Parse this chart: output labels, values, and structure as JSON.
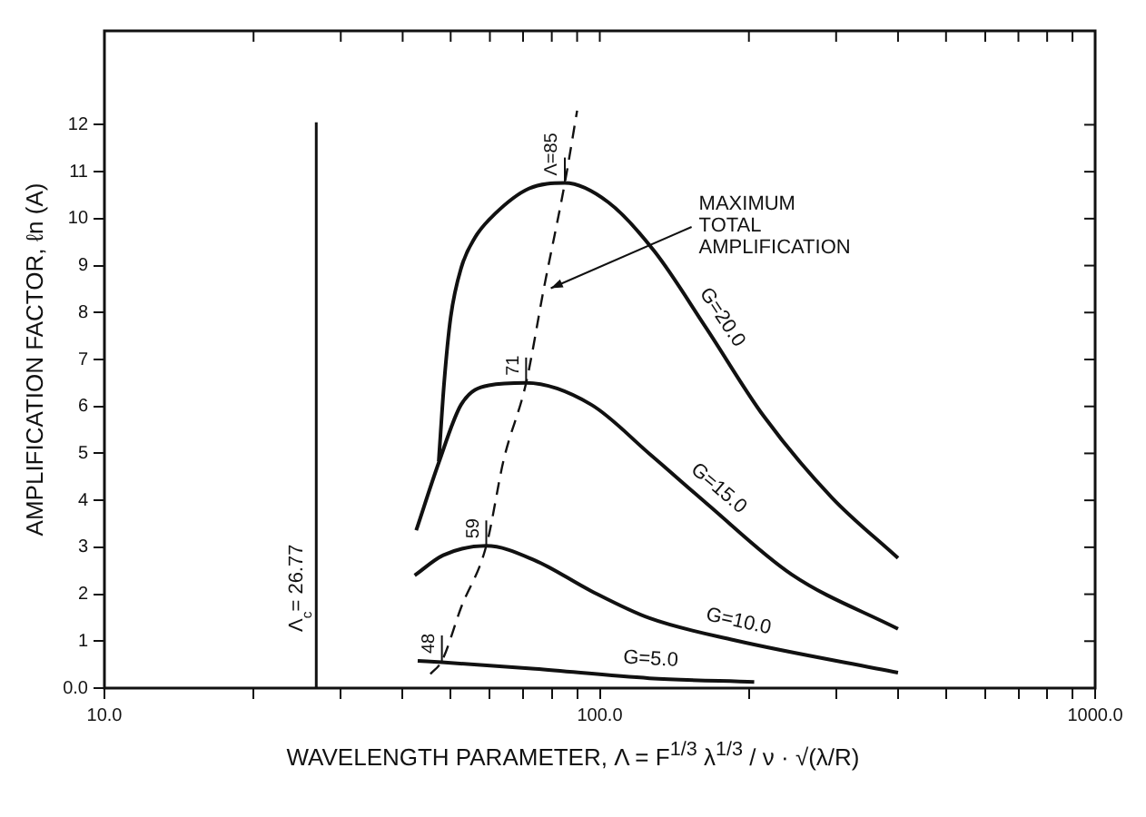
{
  "chart_data": {
    "type": "line",
    "xlabel": "WAVELENGTH PARAMETER, Λ = F$^{1/3}$ λ$^{1/3}$ / ν · √(λ/R)",
    "ylabel": "AMPLIFICATION FACTOR, ℓn (A)",
    "series": [
      {
        "name": "G=20.0",
        "color": "#111111",
        "x": [
          47.3,
          48.5,
          50,
          52.5,
          56,
          61.4,
          71.9,
          85,
          104,
          129,
          164,
          214,
          294,
          400
        ],
        "values": [
          4.83,
          6.5,
          7.9,
          8.95,
          9.6,
          10.1,
          10.64,
          10.76,
          10.35,
          9.3,
          7.67,
          5.8,
          4.06,
          2.77
        ]
      },
      {
        "name": "G=15.0",
        "color": "#111111",
        "x": [
          42.6,
          47.3,
          52.5,
          59.7,
          71,
          96,
          126,
          164,
          244,
          400
        ],
        "values": [
          3.36,
          4.8,
          6.04,
          6.45,
          6.5,
          6.04,
          4.99,
          3.94,
          2.42,
          1.26
        ]
      },
      {
        "name": "G=10.0",
        "color": "#111111",
        "x": [
          42.3,
          48.3,
          59,
          74,
          96,
          126,
          187,
          400
        ],
        "values": [
          2.4,
          2.83,
          3.03,
          2.72,
          2.07,
          1.49,
          1.02,
          0.33
        ]
      },
      {
        "name": "G=5.0",
        "color": "#111111",
        "x": [
          42.9,
          48,
          74,
          126,
          205
        ],
        "values": [
          0.58,
          0.55,
          0.41,
          0.21,
          0.13
        ]
      },
      {
        "color": "#111111",
        "line_style": "dashed",
        "x": [
          45.5,
          48,
          52.5,
          59,
          64,
          71,
          77,
          85,
          90
        ],
        "values": [
          0.3,
          0.58,
          1.72,
          3.03,
          4.87,
          6.5,
          8.48,
          10.76,
          12.3
        ]
      }
    ],
    "ref_lines": [
      {
        "axis": "x",
        "value": 26.77,
        "label": "Λ$_{c}$= 26.77"
      }
    ],
    "annotations": [
      {
        "text": "Λ=85",
        "x": 85,
        "y": 10.76
      },
      {
        "text": "71",
        "x": 71,
        "y": 6.5
      },
      {
        "text": "59",
        "x": 59,
        "y": 3.03
      },
      {
        "text": "48",
        "x": 48,
        "y": 0.58
      },
      {
        "text": "MAXIMUM TOTAL AMPLIFICATION",
        "x": 77,
        "y": 8.48
      }
    ],
    "log": "x",
    "xlim": [
      10,
      1000
    ],
    "ylim": [
      0,
      14
    ],
    "xticks": [
      {
        "value": 10,
        "label": "10.0"
      },
      {
        "value": 20,
        "label": null
      },
      {
        "value": 30,
        "label": null
      },
      {
        "value": 40,
        "label": null
      },
      {
        "value": 50,
        "label": null
      },
      {
        "value": 60,
        "label": null
      },
      {
        "value": 70,
        "label": null
      },
      {
        "value": 80,
        "label": null
      },
      {
        "value": 90,
        "label": null
      },
      {
        "value": 100,
        "label": "100.0"
      },
      {
        "value": 200,
        "label": null
      },
      {
        "value": 300,
        "label": null
      },
      {
        "value": 400,
        "label": null
      },
      {
        "value": 500,
        "label": null
      },
      {
        "value": 600,
        "label": null
      },
      {
        "value": 700,
        "label": null
      },
      {
        "value": 800,
        "label": null
      },
      {
        "value": 900,
        "label": null
      },
      {
        "value": 1000,
        "label": "1000.0"
      }
    ],
    "yticks": [
      {
        "value": 0,
        "label": "0.0"
      },
      1,
      2,
      3,
      4,
      5,
      6,
      7,
      8,
      9,
      10,
      11,
      12
    ],
    "grid": false,
    "legend": false,
    "marker": "none"
  }
}
